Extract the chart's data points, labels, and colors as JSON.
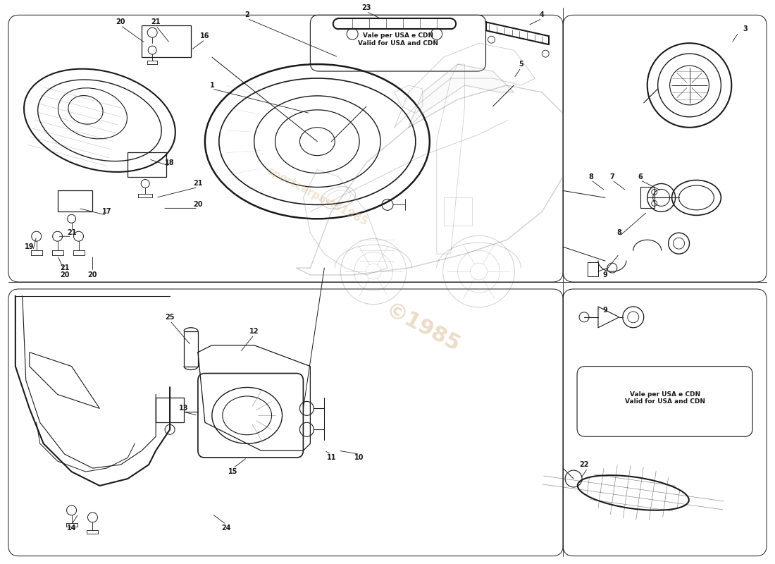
{
  "bg_color": "#ffffff",
  "line_color": "#1a1a1a",
  "car_color": "#555555",
  "watermark_color": "#d4b483",
  "fig_width": 11.0,
  "fig_height": 8.0,
  "usa_cdn_text": "Vale per USA e CDN\nValid for USA and CDN"
}
